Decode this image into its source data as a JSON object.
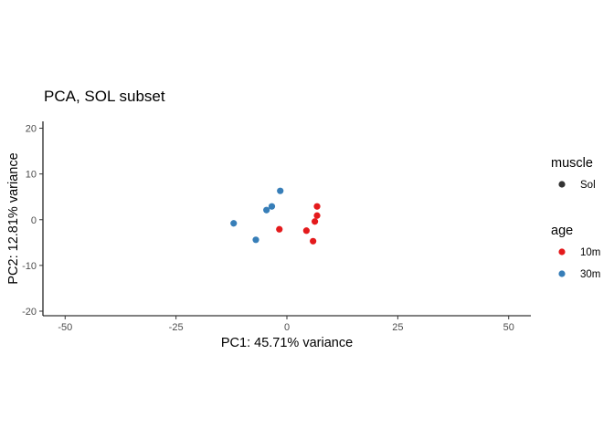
{
  "chart_data": {
    "type": "scatter",
    "title": "PCA, SOL subset",
    "xlabel": "PC1: 45.71% variance",
    "ylabel": "PC2: 12.81% variance",
    "xlim": [
      -55,
      55
    ],
    "ylim": [
      -21,
      21.5
    ],
    "x_ticks": [
      -50,
      -25,
      0,
      25,
      50
    ],
    "y_ticks": [
      -20,
      -10,
      0,
      10,
      20
    ],
    "grid": false,
    "legend_placement": "right",
    "legends": [
      {
        "title": "muscle",
        "entries": [
          {
            "label": "Sol",
            "color": "#333333"
          }
        ]
      },
      {
        "title": "age",
        "entries": [
          {
            "label": "10m",
            "color": "#E41A1C"
          },
          {
            "label": "30m",
            "color": "#377EB8"
          }
        ]
      }
    ],
    "series": [
      {
        "name": "10m",
        "color": "#E41A1C",
        "points": [
          {
            "x": 6.8,
            "y": 2.9
          },
          {
            "x": 6.8,
            "y": 0.9
          },
          {
            "x": 6.3,
            "y": -0.4
          },
          {
            "x": 4.4,
            "y": -2.4
          },
          {
            "x": -1.7,
            "y": -2.1
          },
          {
            "x": 5.9,
            "y": -4.7
          }
        ]
      },
      {
        "name": "30m",
        "color": "#377EB8",
        "points": [
          {
            "x": -1.5,
            "y": 6.3
          },
          {
            "x": -3.4,
            "y": 2.9
          },
          {
            "x": -4.6,
            "y": 2.1
          },
          {
            "x": -12.0,
            "y": -0.8
          },
          {
            "x": -7.0,
            "y": -4.4
          }
        ]
      }
    ]
  }
}
